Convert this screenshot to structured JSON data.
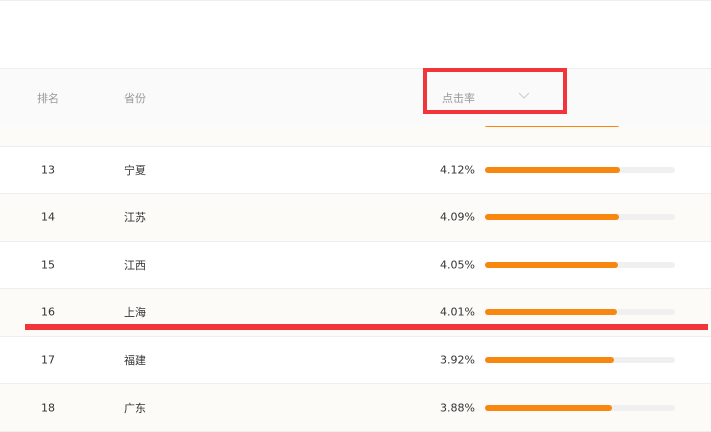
{
  "table": {
    "header": {
      "rank": "排名",
      "province": "省份",
      "rate": "点击率"
    },
    "rows": [
      {
        "rank": 13,
        "province": "宁夏",
        "rate": 4.12,
        "rate_label": "4.12%"
      },
      {
        "rank": 14,
        "province": "江苏",
        "rate": 4.09,
        "rate_label": "4.09%"
      },
      {
        "rank": 15,
        "province": "江西",
        "rate": 4.05,
        "rate_label": "4.05%"
      },
      {
        "rank": 16,
        "province": "上海",
        "rate": 4.01,
        "rate_label": "4.01%"
      },
      {
        "rank": 17,
        "province": "福建",
        "rate": 3.92,
        "rate_label": "3.92%"
      },
      {
        "rank": 18,
        "province": "广东",
        "rate": 3.88,
        "rate_label": "3.88%"
      }
    ]
  }
}
